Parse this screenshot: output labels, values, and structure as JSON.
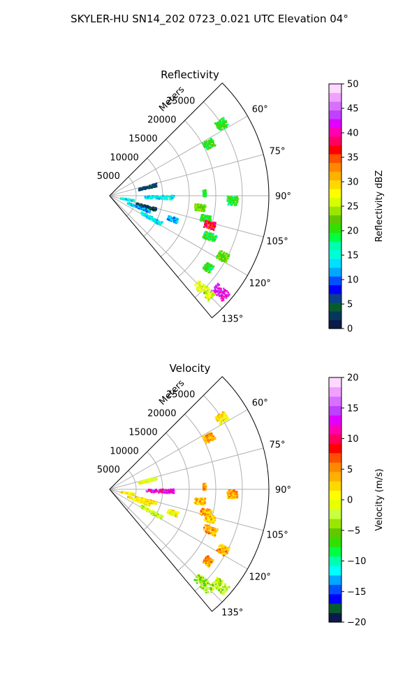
{
  "figure": {
    "title": "SKYLER-HU  SN14_202  0723_0.021 UTC Elevation 04°"
  },
  "chart_data": [
    {
      "type": "heatmap",
      "title": "Reflectivity",
      "projection": "polar-sector",
      "theta_range_deg": [
        45,
        140
      ],
      "r_range_m": [
        0,
        30000
      ],
      "r_ticks": [
        5000,
        10000,
        15000,
        20000,
        25000
      ],
      "r_tick_labels": [
        "5000",
        "10000",
        "15000",
        "20000",
        "25000"
      ],
      "r_unit_label": "Meters",
      "theta_ticks": [
        60,
        75,
        90,
        105,
        120,
        135
      ],
      "theta_tick_labels": [
        "60°",
        "75°",
        "90°",
        "105°",
        "120°",
        "135°"
      ],
      "grid": true,
      "colorbar": {
        "label": "Reflectivity dBZ",
        "min": 0,
        "max": 50,
        "ticks": [
          0,
          5,
          10,
          15,
          20,
          25,
          30,
          35,
          40,
          45,
          50
        ],
        "tick_labels": [
          "0",
          "5",
          "10",
          "15",
          "20",
          "25",
          "30",
          "35",
          "40",
          "45",
          "50"
        ],
        "colors": [
          "#0a1a4a",
          "#06365a",
          "#075c2e",
          "#0b3f8c",
          "#0000ff",
          "#0050ff",
          "#00a8ff",
          "#00e0ff",
          "#00ffd8",
          "#00ffb0",
          "#00ff40",
          "#30e000",
          "#60c800",
          "#9be600",
          "#d8ff00",
          "#ffff00",
          "#ffd800",
          "#ffb000",
          "#ff8800",
          "#ff5000",
          "#ff0000",
          "#ff0060",
          "#ff00b0",
          "#e000ff",
          "#c040ff",
          "#d870ff",
          "#f0a0ff",
          "#ffd8ff"
        ]
      },
      "echoes": [
        {
          "az": 91,
          "r": [
            6500,
            12000
          ],
          "value": 14
        },
        {
          "az": 76,
          "r": [
            5500,
            9000
          ],
          "value": 5
        },
        {
          "az": 100,
          "r": [
            2000,
            4500
          ],
          "value": 14
        },
        {
          "az": 106,
          "r": [
            5000,
            9000
          ],
          "value": 3
        },
        {
          "az": 111,
          "r": [
            3500,
            8000
          ],
          "value": 12
        },
        {
          "az": 118,
          "r": [
            6500,
            11000
          ],
          "value": 14
        },
        {
          "az": 110,
          "r": [
            11500,
            13500
          ],
          "value": 12
        },
        {
          "az": 88,
          "r": [
            17500,
            18000
          ],
          "value": 20
        },
        {
          "az": 97,
          "r": [
            16000,
            18000
          ],
          "value": 22
        },
        {
          "az": 103,
          "r": [
            17500,
            19500
          ],
          "value": 20
        },
        {
          "az": 106,
          "r": [
            18500,
            20500
          ],
          "value": 37
        },
        {
          "az": 112,
          "r": [
            19000,
            21500
          ],
          "value": 20
        },
        {
          "az": 118,
          "r": [
            23000,
            25000
          ],
          "value": 22
        },
        {
          "az": 126,
          "r": [
            22000,
            23500
          ],
          "value": 20
        },
        {
          "az": 131,
          "r": [
            26000,
            29000
          ],
          "value": 42
        },
        {
          "az": 135,
          "r": [
            23000,
            27000
          ],
          "value": 26
        },
        {
          "az": 62,
          "r": [
            20000,
            22000
          ],
          "value": 20
        },
        {
          "az": 57,
          "r": [
            24000,
            26000
          ],
          "value": 20
        },
        {
          "az": 92,
          "r": [
            22000,
            24000
          ],
          "value": 20
        }
      ]
    },
    {
      "type": "heatmap",
      "title": "Velocity",
      "projection": "polar-sector",
      "theta_range_deg": [
        45,
        140
      ],
      "r_range_m": [
        0,
        30000
      ],
      "r_ticks": [
        5000,
        10000,
        15000,
        20000,
        25000
      ],
      "r_tick_labels": [
        "5000",
        "10000",
        "15000",
        "20000",
        "25000"
      ],
      "r_unit_label": "Meters",
      "theta_ticks": [
        60,
        75,
        90,
        105,
        120,
        135
      ],
      "theta_tick_labels": [
        "60°",
        "75°",
        "90°",
        "105°",
        "120°",
        "135°"
      ],
      "grid": true,
      "colorbar": {
        "label": "Velocity (m/s)",
        "min": -20,
        "max": 20,
        "ticks": [
          -20,
          -15,
          -10,
          -5,
          0,
          5,
          10,
          15,
          20
        ],
        "tick_labels": [
          "−20",
          "−15",
          "−10",
          "−5",
          "0",
          "5",
          "10",
          "15",
          "20"
        ],
        "colors": [
          "#0a1a4a",
          "#075c2e",
          "#0000ff",
          "#0050ff",
          "#00a8ff",
          "#00ffff",
          "#00ffb0",
          "#00ff40",
          "#30e000",
          "#60c800",
          "#9be600",
          "#c8ff40",
          "#e8ff00",
          "#ffff00",
          "#ffd800",
          "#ffb000",
          "#ff8800",
          "#ff5000",
          "#ff0000",
          "#ff0060",
          "#ff00b0",
          "#e000ff",
          "#c040ff",
          "#d870ff",
          "#f0a0ff",
          "#ffd8ff"
        ]
      },
      "echoes": [
        {
          "az": 91,
          "r": [
            6500,
            12000
          ],
          "value": 12
        },
        {
          "az": 76,
          "r": [
            5500,
            9000
          ],
          "value": 0
        },
        {
          "az": 100,
          "r": [
            2000,
            4500
          ],
          "value": 1
        },
        {
          "az": 106,
          "r": [
            5000,
            9000
          ],
          "value": 2
        },
        {
          "az": 111,
          "r": [
            3500,
            8000
          ],
          "value": 1
        },
        {
          "az": 118,
          "r": [
            6500,
            11000
          ],
          "value": -2
        },
        {
          "az": 110,
          "r": [
            11500,
            13500
          ],
          "value": 1
        },
        {
          "az": 88,
          "r": [
            17500,
            18000
          ],
          "value": 4
        },
        {
          "az": 97,
          "r": [
            16000,
            18000
          ],
          "value": 3
        },
        {
          "az": 103,
          "r": [
            17500,
            19500
          ],
          "value": 4
        },
        {
          "az": 106,
          "r": [
            18500,
            20500
          ],
          "value": 3
        },
        {
          "az": 112,
          "r": [
            19000,
            21500
          ],
          "value": 4
        },
        {
          "az": 118,
          "r": [
            23000,
            25000
          ],
          "value": 4
        },
        {
          "az": 126,
          "r": [
            22000,
            23500
          ],
          "value": 4
        },
        {
          "az": 131,
          "r": [
            26000,
            29000
          ],
          "value": -3
        },
        {
          "az": 135,
          "r": [
            23000,
            27000
          ],
          "value": -4
        },
        {
          "az": 62,
          "r": [
            20000,
            22000
          ],
          "value": 4
        },
        {
          "az": 57,
          "r": [
            24000,
            26000
          ],
          "value": 1
        },
        {
          "az": 92,
          "r": [
            22000,
            24000
          ],
          "value": 4
        }
      ]
    }
  ]
}
